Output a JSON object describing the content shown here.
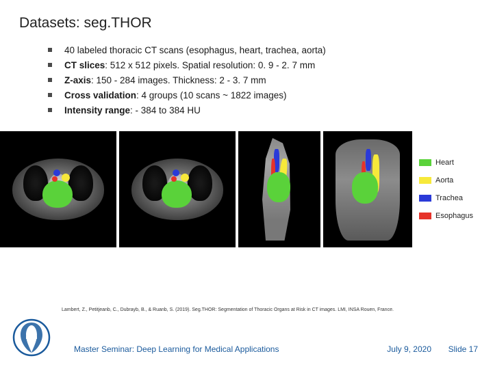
{
  "title": "Datasets: seg.THOR",
  "bullets": [
    {
      "bold": "",
      "text": "40 labeled thoracic CT scans (esophagus, heart, trachea, aorta)"
    },
    {
      "bold": "CT slices",
      "text": ": 512 x 512 pixels. Spatial resolution: 0. 9 - 2. 7 mm"
    },
    {
      "bold": "Z-axis",
      "text": ": 150 - 284 images. Thickness: 2 - 3. 7 mm"
    },
    {
      "bold": "Cross validation",
      "text": ": 4 groups (10 scans ~ 1822 images)"
    },
    {
      "bold": "Intensity range",
      "text": ": - 384 to 384 HU"
    }
  ],
  "colors": {
    "heart": "#5ad23a",
    "aorta": "#f7e93a",
    "trachea": "#2a3ad8",
    "esophagus": "#e6332a",
    "footer_text": "#1a5a9c"
  },
  "legend": [
    {
      "key": "heart",
      "label": "Heart"
    },
    {
      "key": "aorta",
      "label": "Aorta"
    },
    {
      "key": "trachea",
      "label": "Trachea"
    },
    {
      "key": "esophagus",
      "label": "Esophagus"
    }
  ],
  "citation": "Lambert, Z., Petitjeanb, C., Dubrayb, B., &amp; Ruanb, S. (2019). Seg.THOR: Segmentation of Thoracic Organs at Risk in CT images. LMI, INSA Rouen, France.",
  "footer": {
    "seminar": "Master Seminar: Deep Learning for Medical Applications",
    "date": "July 9, 2020",
    "slide": "Slide 17"
  }
}
